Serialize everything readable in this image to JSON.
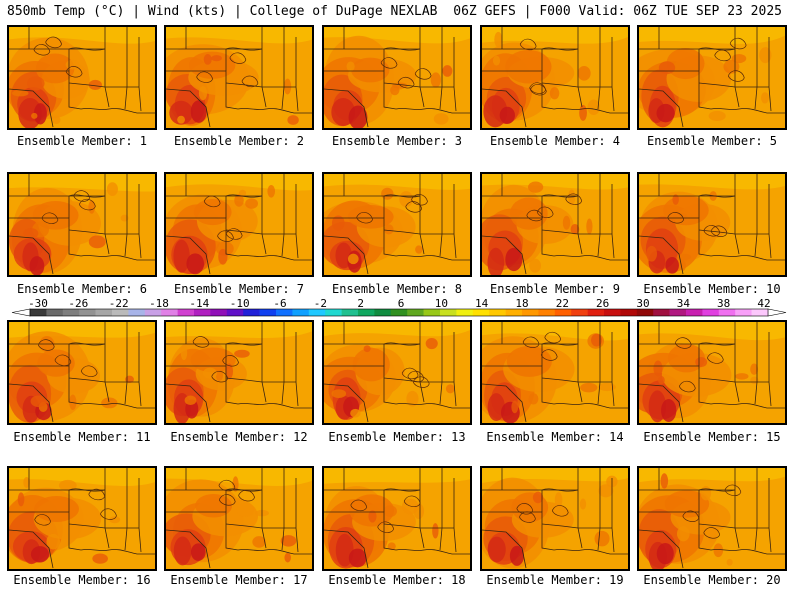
{
  "header": {
    "left": "850mb Temp (°C) | Wind (kts) | College of DuPage NEXLAB",
    "right": "06Z GEFS | F000 Valid: 06Z TUE SEP 23 2025"
  },
  "panels": [
    {
      "label": "Ensemble Member: 1"
    },
    {
      "label": "Ensemble Member: 2"
    },
    {
      "label": "Ensemble Member: 3"
    },
    {
      "label": "Ensemble Member: 4"
    },
    {
      "label": "Ensemble Member: 5"
    },
    {
      "label": "Ensemble Member: 6"
    },
    {
      "label": "Ensemble Member: 7"
    },
    {
      "label": "Ensemble Member: 8"
    },
    {
      "label": "Ensemble Member: 9"
    },
    {
      "label": "Ensemble Member: 10"
    },
    {
      "label": "Ensemble Member: 11"
    },
    {
      "label": "Ensemble Member: 12"
    },
    {
      "label": "Ensemble Member: 13"
    },
    {
      "label": "Ensemble Member: 14"
    },
    {
      "label": "Ensemble Member: 15"
    },
    {
      "label": "Ensemble Member: 16"
    },
    {
      "label": "Ensemble Member: 17"
    },
    {
      "label": "Ensemble Member: 18"
    },
    {
      "label": "Ensemble Member: 19"
    },
    {
      "label": "Ensemble Member: 20"
    }
  ],
  "colorbar": {
    "tick_labels": [
      "-30",
      "-26",
      "-22",
      "-18",
      "-14",
      "-10",
      "-6",
      "-2",
      "2",
      "6",
      "10",
      "14",
      "18",
      "22",
      "26",
      "30",
      "34",
      "38",
      "42"
    ],
    "colors": [
      "#3a3a3a",
      "#6a6a6a",
      "#7e7e7e",
      "#929292",
      "#a6a6a6",
      "#bababa",
      "#a8b4e8",
      "#c8a0e6",
      "#e080e6",
      "#d040d0",
      "#b020c0",
      "#9010b8",
      "#6010c8",
      "#2020d8",
      "#1040f0",
      "#1070ff",
      "#10a0ff",
      "#20c8ff",
      "#20d8d0",
      "#20c090",
      "#10a860",
      "#108c40",
      "#309020",
      "#60a820",
      "#98c818",
      "#c8e020",
      "#f0f010",
      "#ffe000",
      "#ffc800",
      "#ffb000",
      "#ff9800",
      "#ff8000",
      "#ff6000",
      "#f04010",
      "#e02010",
      "#c81010",
      "#b00808",
      "#900808",
      "#a01040",
      "#b01880",
      "#c820b0",
      "#e040e0",
      "#f070f0",
      "#f8a0f8",
      "#fcc8fc"
    ],
    "heat_colors": [
      "#f5a300",
      "#f28e00",
      "#ee7400",
      "#e85a08",
      "#e04010",
      "#d42a14",
      "#c81818"
    ],
    "border_color": "#3a2410"
  }
}
